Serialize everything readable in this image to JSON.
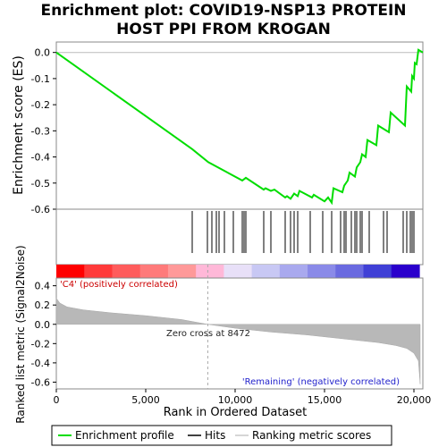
{
  "title_line1": "Enrichment plot: COVID19-NSP13 PROTEIN",
  "title_line2": "HOST PPI FROM KROGAN",
  "chart_data": {
    "type": "line",
    "x_label": "Rank in Ordered Dataset",
    "x_range": [
      0,
      20500
    ],
    "x_ticks": [
      0,
      5000,
      10000,
      15000,
      20000
    ],
    "x_tick_labels": [
      "0",
      "5,000",
      "10,000",
      "15,000",
      "20,000"
    ],
    "top_panel": {
      "ylabel": "Enrichment score (ES)",
      "ylim": [
        -0.6,
        0.04
      ],
      "yticks": [
        0.0,
        -0.1,
        -0.2,
        -0.3,
        -0.4,
        -0.5,
        -0.6
      ],
      "ytick_labels": [
        "0.0",
        "-0.1",
        "-0.2",
        "-0.3",
        "-0.4",
        "-0.5",
        "-0.6"
      ],
      "series_name": "Enrichment profile",
      "color": "#00dd00",
      "es_points": [
        [
          0,
          0.0
        ],
        [
          7600,
          -0.37
        ],
        [
          8500,
          -0.42
        ],
        [
          10400,
          -0.49
        ],
        [
          10600,
          -0.48
        ],
        [
          11600,
          -0.525
        ],
        [
          11700,
          -0.52
        ],
        [
          12000,
          -0.53
        ],
        [
          12200,
          -0.525
        ],
        [
          12800,
          -0.555
        ],
        [
          12900,
          -0.55
        ],
        [
          13100,
          -0.56
        ],
        [
          13300,
          -0.54
        ],
        [
          13500,
          -0.55
        ],
        [
          13600,
          -0.53
        ],
        [
          14300,
          -0.555
        ],
        [
          14400,
          -0.545
        ],
        [
          15000,
          -0.57
        ],
        [
          15200,
          -0.555
        ],
        [
          15400,
          -0.575
        ],
        [
          15500,
          -0.52
        ],
        [
          16000,
          -0.535
        ],
        [
          16100,
          -0.51
        ],
        [
          16300,
          -0.49
        ],
        [
          16400,
          -0.46
        ],
        [
          16700,
          -0.475
        ],
        [
          16800,
          -0.44
        ],
        [
          17000,
          -0.42
        ],
        [
          17100,
          -0.39
        ],
        [
          17300,
          -0.4
        ],
        [
          17400,
          -0.335
        ],
        [
          17900,
          -0.355
        ],
        [
          18000,
          -0.28
        ],
        [
          18600,
          -0.305
        ],
        [
          18700,
          -0.23
        ],
        [
          19500,
          -0.28
        ],
        [
          19600,
          -0.13
        ],
        [
          19850,
          -0.15
        ],
        [
          19900,
          -0.09
        ],
        [
          20000,
          -0.1
        ],
        [
          20050,
          -0.04
        ],
        [
          20150,
          -0.045
        ],
        [
          20250,
          0.01
        ],
        [
          20500,
          0.0
        ]
      ]
    },
    "hits": [
      7600,
      8450,
      8700,
      8950,
      9100,
      9400,
      9900,
      10400,
      10500,
      10600,
      11600,
      12000,
      12800,
      13100,
      13300,
      13500,
      14200,
      14900,
      15400,
      15900,
      16100,
      16200,
      16500,
      16700,
      16800,
      17000,
      17100,
      17500,
      18300,
      18500,
      19400,
      19600,
      19800,
      19900,
      20000
    ],
    "heatmap_colors": [
      "#ff0000",
      "#ff3a3a",
      "#ff5c5c",
      "#ff7a7a",
      "#ff9999",
      "#ffb8d8",
      "#e8e0f8",
      "#c8c8f4",
      "#a9a9ee",
      "#8a8ae8",
      "#6a6ae0",
      "#4040d6",
      "#2a00cc"
    ],
    "bottom_panel": {
      "ylabel": "Ranked list metric (Signal2Noise)",
      "ylim": [
        -0.67,
        0.48
      ],
      "yticks": [
        0.4,
        0.2,
        0.0,
        -0.2,
        -0.4,
        -0.6
      ],
      "ytick_labels": [
        "0.4",
        "0.2",
        "0.0",
        "-0.2",
        "-0.4",
        "-0.6"
      ],
      "metric_points": [
        [
          0,
          0.27
        ],
        [
          200,
          0.22
        ],
        [
          600,
          0.18
        ],
        [
          1500,
          0.15
        ],
        [
          3000,
          0.12
        ],
        [
          5000,
          0.09
        ],
        [
          7000,
          0.05
        ],
        [
          8472,
          0.0
        ],
        [
          10000,
          -0.04
        ],
        [
          12000,
          -0.08
        ],
        [
          14000,
          -0.11
        ],
        [
          16000,
          -0.15
        ],
        [
          18000,
          -0.19
        ],
        [
          19000,
          -0.22
        ],
        [
          19600,
          -0.25
        ],
        [
          20000,
          -0.3
        ],
        [
          20250,
          -0.38
        ],
        [
          20350,
          -0.62
        ]
      ],
      "zero_cross_label": "Zero cross at 8472",
      "zero_cross_x": 8472,
      "pos_label": "'C4' (positively correlated)",
      "neg_label": "'Remaining' (negatively correlated)"
    },
    "legend": {
      "placement": "bottom",
      "entries": [
        "Enrichment profile",
        "Hits",
        "Ranking metric scores"
      ]
    }
  }
}
